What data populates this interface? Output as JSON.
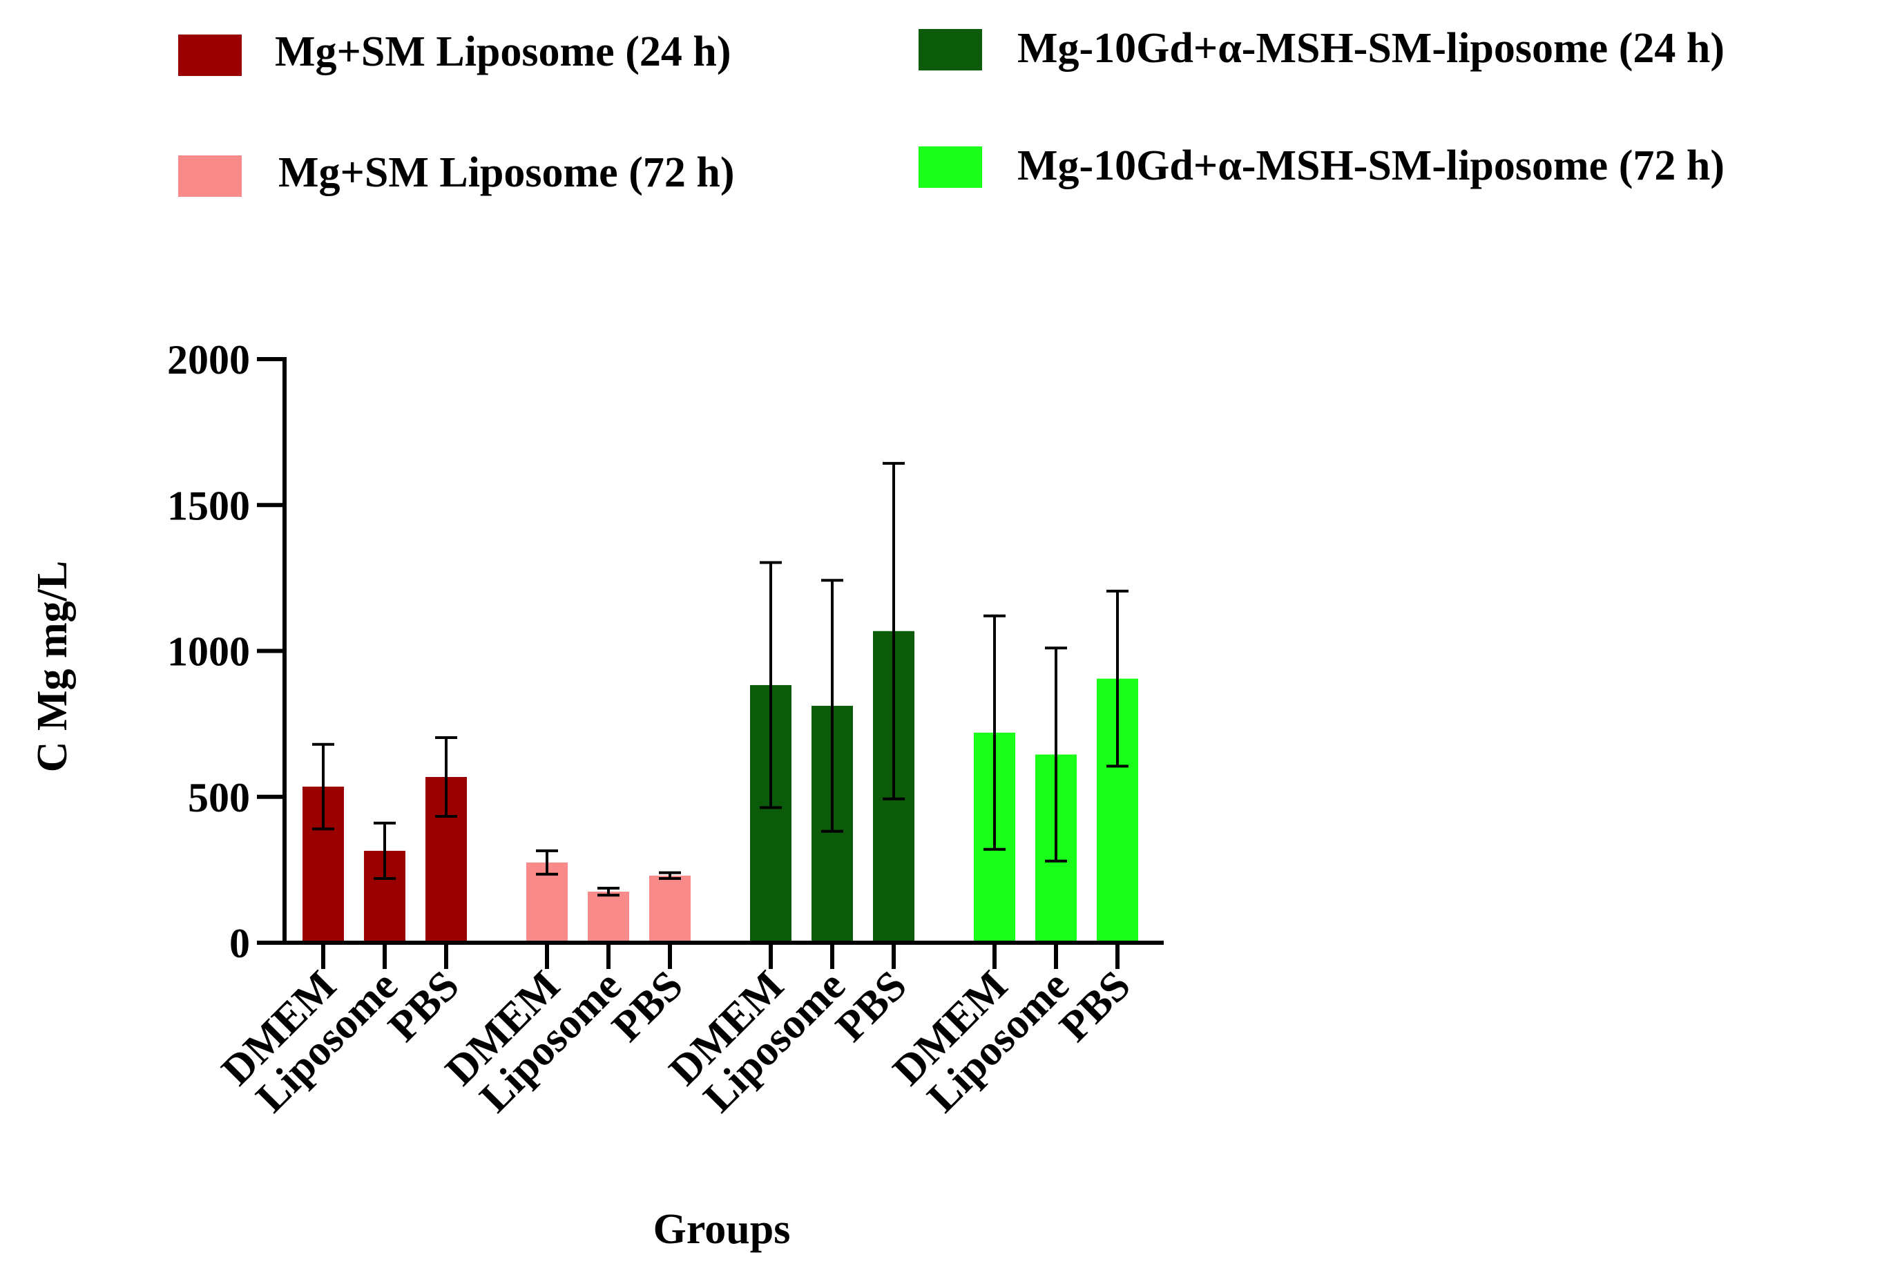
{
  "chart_data": {
    "type": "bar",
    "title": "",
    "xlabel": "Groups",
    "ylabel": "C Mg mg/L",
    "ylim": [
      0,
      2000
    ],
    "yticks": [
      0,
      500,
      1000,
      1500,
      2000
    ],
    "categories": [
      "DMEM",
      "Liposome",
      "PBS"
    ],
    "series": [
      {
        "name": "Mg+SM Liposome (24 h)",
        "color": "#9b0000",
        "values": [
          535,
          315,
          568
        ],
        "errors": [
          145,
          95,
          135
        ]
      },
      {
        "name": "Mg+SM Liposome (72 h)",
        "color": "#f98a8a",
        "values": [
          275,
          175,
          230
        ],
        "errors": [
          40,
          12,
          10
        ]
      },
      {
        "name": "Mg-10Gd+α-MSH-SM-liposome (24 h)",
        "color": "#0b5b0b",
        "values": [
          883,
          812,
          1068
        ],
        "errors": [
          420,
          430,
          575
        ]
      },
      {
        "name": "Mg-10Gd+α-MSH-SM-liposome (72 h)",
        "color": "#19ff19",
        "values": [
          720,
          645,
          905
        ],
        "errors": [
          400,
          365,
          300
        ]
      }
    ],
    "legend_position": "top"
  }
}
